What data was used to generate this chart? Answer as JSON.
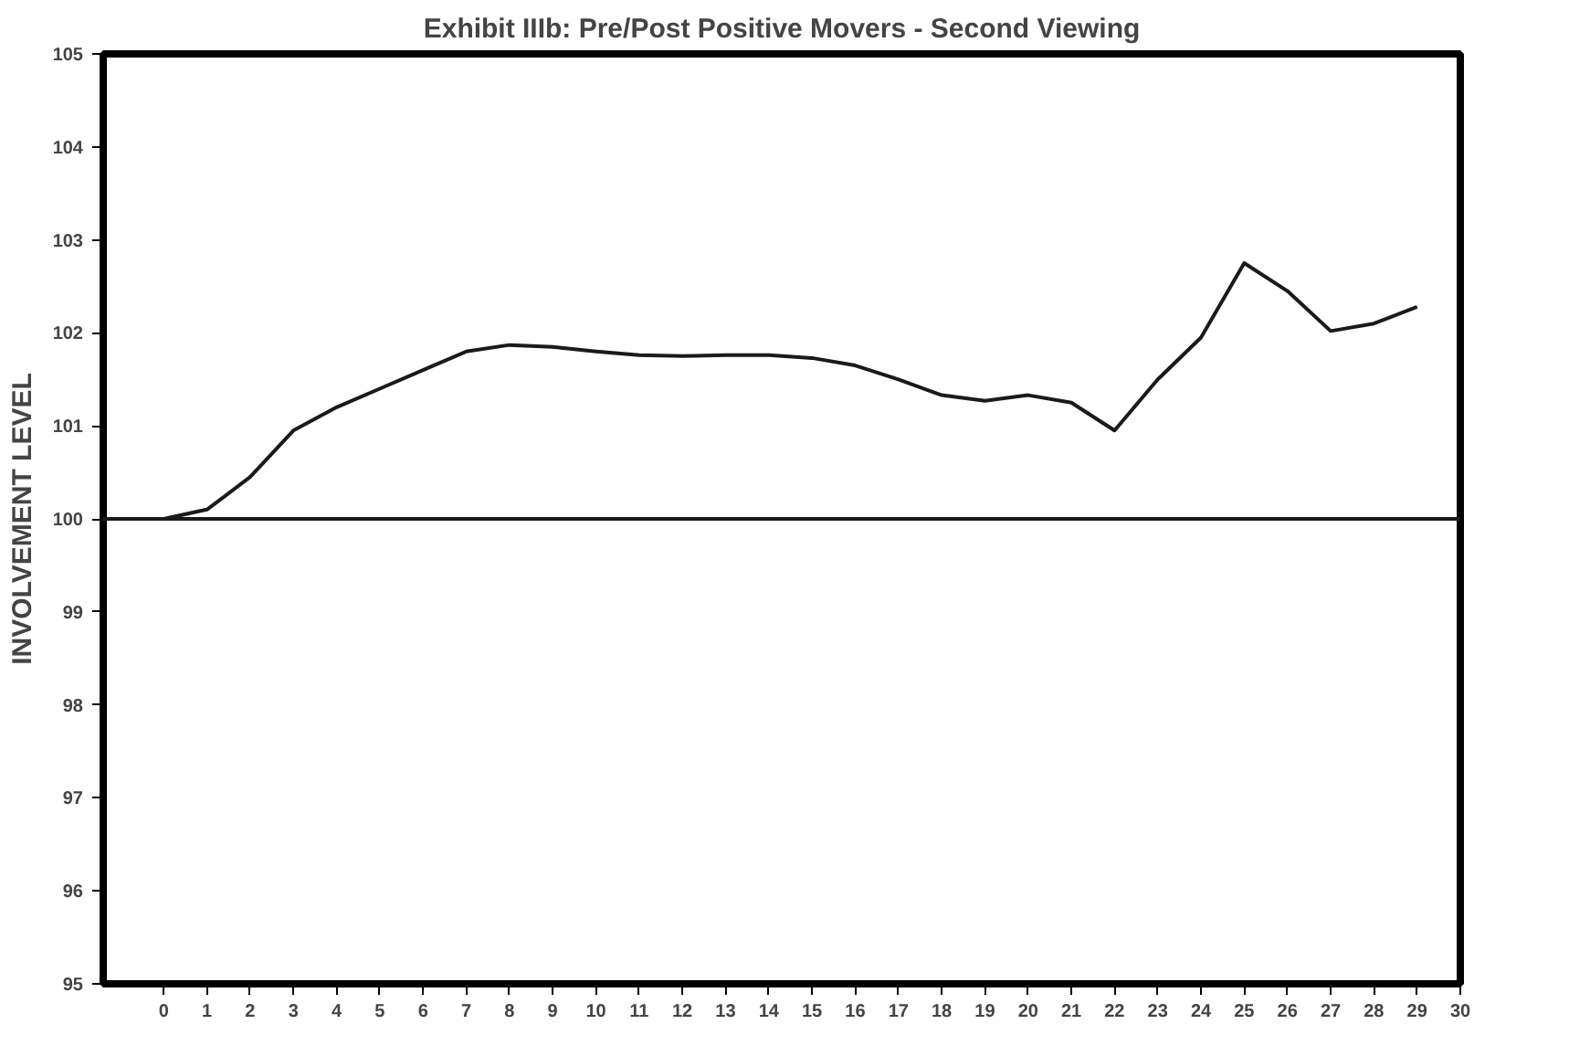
{
  "chart_data": {
    "type": "line",
    "title": "Exhibit IIIb: Pre/Post Positive Movers - Second Viewing",
    "ylabel": "INVOLVEMENT LEVEL",
    "x": [
      0,
      1,
      2,
      3,
      4,
      5,
      6,
      7,
      8,
      9,
      10,
      11,
      12,
      13,
      14,
      15,
      16,
      17,
      18,
      19,
      20,
      21,
      22,
      23,
      24,
      25,
      26,
      27,
      28,
      29
    ],
    "series": [
      {
        "color": "#1a1a1a",
        "values": [
          100,
          100.1,
          100.45,
          100.95,
          101.2,
          101.4,
          101.6,
          101.8,
          101.87,
          101.85,
          101.8,
          101.76,
          101.75,
          101.76,
          101.76,
          101.73,
          101.65,
          101.5,
          101.33,
          101.27,
          101.33,
          101.25,
          100.95,
          101.5,
          101.95,
          102.75,
          102.45,
          102.02,
          102.1,
          102.28
        ]
      }
    ],
    "xlim": [
      -1.4,
      30
    ],
    "xticks": [
      0,
      1,
      2,
      3,
      4,
      5,
      6,
      7,
      8,
      9,
      10,
      11,
      12,
      13,
      14,
      15,
      16,
      17,
      18,
      19,
      20,
      21,
      22,
      23,
      24,
      25,
      26,
      27,
      28,
      29,
      30
    ],
    "ylim": [
      95,
      105
    ],
    "yticks": [
      95,
      96,
      97,
      98,
      99,
      100,
      101,
      102,
      103,
      104,
      105
    ],
    "ref_lines": [
      {
        "axis": "y",
        "value": 100,
        "color": "#1a1a1a"
      }
    ],
    "grid": false,
    "marker": "none",
    "line_style": "solid"
  }
}
